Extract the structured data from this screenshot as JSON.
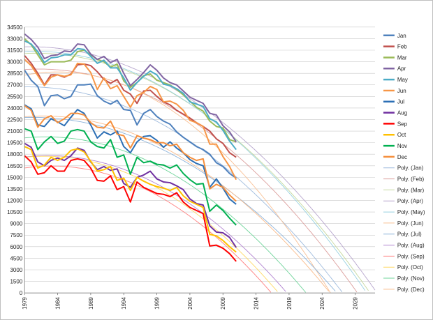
{
  "chart_data": {
    "type": "line",
    "x": [
      1979,
      1980,
      1981,
      1982,
      1983,
      1984,
      1985,
      1986,
      1987,
      1988,
      1989,
      1990,
      1991,
      1992,
      1993,
      1994,
      1995,
      1996,
      1997,
      1998,
      1999,
      2000,
      2001,
      2002,
      2003,
      2004,
      2005,
      2006,
      2007,
      2008,
      2009,
      2010,
      2011
    ],
    "xlim": [
      1979,
      2032
    ],
    "x_ticks": [
      1979,
      1984,
      1989,
      1994,
      1999,
      2004,
      2009,
      2014,
      2019,
      2024,
      2029
    ],
    "x_tick_labels": [
      "1979",
      "1984",
      "1989",
      "1994",
      "1999",
      "2004",
      "2009",
      "2014",
      "2019",
      "2024",
      "2029"
    ],
    "ylim": [
      0,
      34500
    ],
    "y_ticks": [
      0,
      1500,
      3000,
      4500,
      6000,
      7500,
      9000,
      10500,
      12000,
      13500,
      15000,
      16500,
      18000,
      19500,
      21000,
      22500,
      24000,
      25500,
      27000,
      28500,
      30000,
      31500,
      33000,
      34500
    ],
    "y_tick_labels": [
      "0",
      "1500",
      "3000",
      "4500",
      "6000",
      "7500",
      "9000",
      "10500",
      "12000",
      "13500",
      "15000",
      "16500",
      "18000",
      "19500",
      "21000",
      "22500",
      "24000",
      "25500",
      "27000",
      "28500",
      "30000",
      "31500",
      "33000",
      "34500"
    ],
    "grid": true,
    "legend_position": "right",
    "series": [
      {
        "name": "Jan",
        "color": "#4f81bd",
        "values": [
          28900,
          27600,
          26800,
          24300,
          25600,
          25700,
          25200,
          25500,
          27000,
          27000,
          27100,
          25600,
          24900,
          24500,
          25000,
          23800,
          23700,
          21800,
          23300,
          23800,
          22900,
          22300,
          21900,
          20900,
          20200,
          19600,
          19000,
          18600,
          18000,
          16900,
          16400,
          15500,
          14900
        ]
      },
      {
        "name": "Feb",
        "color": "#c0504d",
        "values": [
          30800,
          29800,
          28500,
          27000,
          28300,
          28300,
          28000,
          28400,
          29600,
          29700,
          29500,
          28700,
          27700,
          27200,
          27700,
          26300,
          25800,
          24600,
          26200,
          26300,
          25500,
          24800,
          24400,
          23700,
          23200,
          22700,
          22100,
          21600,
          21000,
          20000,
          19400,
          18200,
          17600
        ]
      },
      {
        "name": "Mar",
        "color": "#9bbb59",
        "values": [
          33000,
          32200,
          30900,
          29600,
          30000,
          30000,
          30000,
          30200,
          31300,
          31500,
          30900,
          30300,
          30000,
          29300,
          29700,
          27500,
          26700,
          27300,
          28200,
          28400,
          27600,
          27300,
          27000,
          26400,
          25700,
          24900,
          24100,
          23600,
          22300,
          21600,
          21400,
          19900,
          19600
        ]
      },
      {
        "name": "Apr",
        "color": "#8064a2",
        "values": [
          33600,
          32900,
          31900,
          30400,
          30800,
          30900,
          31400,
          31300,
          32300,
          32200,
          31000,
          30300,
          30700,
          29900,
          30300,
          28500,
          26900,
          27700,
          28600,
          29600,
          28900,
          27900,
          27300,
          27000,
          26200,
          25400,
          25000,
          24600,
          23300,
          23100,
          21700,
          20900,
          19600
        ]
      },
      {
        "name": "May",
        "color": "#4bacc6",
        "values": [
          32700,
          32300,
          31300,
          29900,
          30500,
          30600,
          30900,
          30900,
          31700,
          31600,
          30700,
          29800,
          30200,
          29200,
          29200,
          27900,
          26300,
          27300,
          28100,
          28800,
          28300,
          27100,
          26900,
          26500,
          25900,
          24800,
          24500,
          24200,
          22600,
          22200,
          21100,
          19700,
          18600
        ]
      },
      {
        "name": "Jun",
        "color": "#f79646",
        "values": [
          30300,
          29500,
          28200,
          26900,
          28000,
          28300,
          28100,
          28300,
          29800,
          29700,
          28600,
          26400,
          27900,
          26500,
          26900,
          25500,
          24100,
          25600,
          26000,
          26800,
          26400,
          24800,
          24900,
          24500,
          23700,
          22400,
          22100,
          21600,
          19300,
          19300,
          17700,
          16400,
          14700
        ]
      },
      {
        "name": "Jul",
        "color": "#2c6fb5",
        "values": [
          24400,
          23900,
          21800,
          21600,
          22600,
          22200,
          21700,
          22800,
          23800,
          23300,
          21800,
          20100,
          20900,
          20500,
          21000,
          19000,
          18200,
          19600,
          20300,
          20400,
          19800,
          18900,
          19600,
          18800,
          18200,
          17300,
          16800,
          16500,
          13700,
          14800,
          13600,
          12200,
          11500
        ]
      },
      {
        "name": "Aug",
        "color": "#7030a0",
        "values": [
          19400,
          18900,
          17000,
          16500,
          17200,
          17500,
          17200,
          17800,
          18800,
          18500,
          17000,
          16000,
          16400,
          15900,
          16100,
          14200,
          13700,
          15000,
          15300,
          15800,
          14800,
          14400,
          14300,
          13900,
          13400,
          12200,
          11600,
          11400,
          8700,
          7900,
          7800,
          7200,
          5900
        ]
      },
      {
        "name": "Sep",
        "color": "#ff0000",
        "values": [
          17800,
          17000,
          15400,
          15600,
          16500,
          15800,
          15800,
          17200,
          17400,
          17200,
          16200,
          14600,
          14500,
          15200,
          13400,
          13800,
          11800,
          14400,
          13700,
          13300,
          12900,
          12800,
          12500,
          13000,
          11800,
          11100,
          10700,
          10300,
          6100,
          6200,
          5800,
          5100,
          4100
        ]
      },
      {
        "name": "Oct",
        "color": "#ffc000",
        "values": [
          19000,
          18600,
          16200,
          16600,
          17600,
          17200,
          17600,
          18500,
          18700,
          18300,
          17100,
          15800,
          16000,
          16400,
          14600,
          14900,
          13300,
          15000,
          14500,
          14100,
          13800,
          13600,
          13300,
          13700,
          12600,
          11900,
          11500,
          11100,
          7600,
          7400,
          6800,
          6000,
          5300
        ]
      },
      {
        "name": "Nov",
        "color": "#00b050",
        "values": [
          21300,
          21000,
          18600,
          19600,
          20300,
          19400,
          19700,
          21000,
          21200,
          21000,
          19600,
          19000,
          18800,
          19900,
          17600,
          17900,
          15400,
          17600,
          16900,
          17100,
          16700,
          16600,
          16200,
          16600,
          15500,
          14700,
          14100,
          14200,
          10600,
          11400,
          10700,
          9700,
          8800
        ]
      },
      {
        "name": "Dec",
        "color": "#f58f3d",
        "values": [
          24300,
          23700,
          21500,
          22600,
          23000,
          22100,
          22600,
          23300,
          23300,
          23100,
          22100,
          21500,
          21400,
          22300,
          20600,
          20400,
          18800,
          20400,
          20100,
          19900,
          19500,
          19500,
          19100,
          19300,
          18200,
          17600,
          17200,
          17400,
          13500,
          14100,
          13700,
          12700,
          11900
        ]
      }
    ],
    "trendline_series": [
      {
        "name": "Poly. (Jan)",
        "color": "#9fbbdd",
        "source": "Jan"
      },
      {
        "name": "Poly. (Feb)",
        "color": "#dc9e9c",
        "source": "Feb"
      },
      {
        "name": "Poly. (Mar)",
        "color": "#c5d99f",
        "source": "Mar"
      },
      {
        "name": "Poly. (Apr)",
        "color": "#b7a6cd",
        "source": "Apr"
      },
      {
        "name": "Poly. (May)",
        "color": "#98d1e0",
        "source": "May"
      },
      {
        "name": "Poly. (Jun)",
        "color": "#f9c094",
        "source": "Jun"
      },
      {
        "name": "Poly. (Jul)",
        "color": "#8db3da",
        "source": "Jul"
      },
      {
        "name": "Poly. (Aug)",
        "color": "#b182d0",
        "source": "Aug"
      },
      {
        "name": "Poly. (Sep)",
        "color": "#ff8080",
        "source": "Sep"
      },
      {
        "name": "Poly. (Oct)",
        "color": "#ffd966",
        "source": "Oct"
      },
      {
        "name": "Poly. (Nov)",
        "color": "#6fd49a",
        "source": "Nov"
      },
      {
        "name": "Poly. (Dec)",
        "color": "#f9bb8a",
        "source": "Dec"
      }
    ]
  }
}
